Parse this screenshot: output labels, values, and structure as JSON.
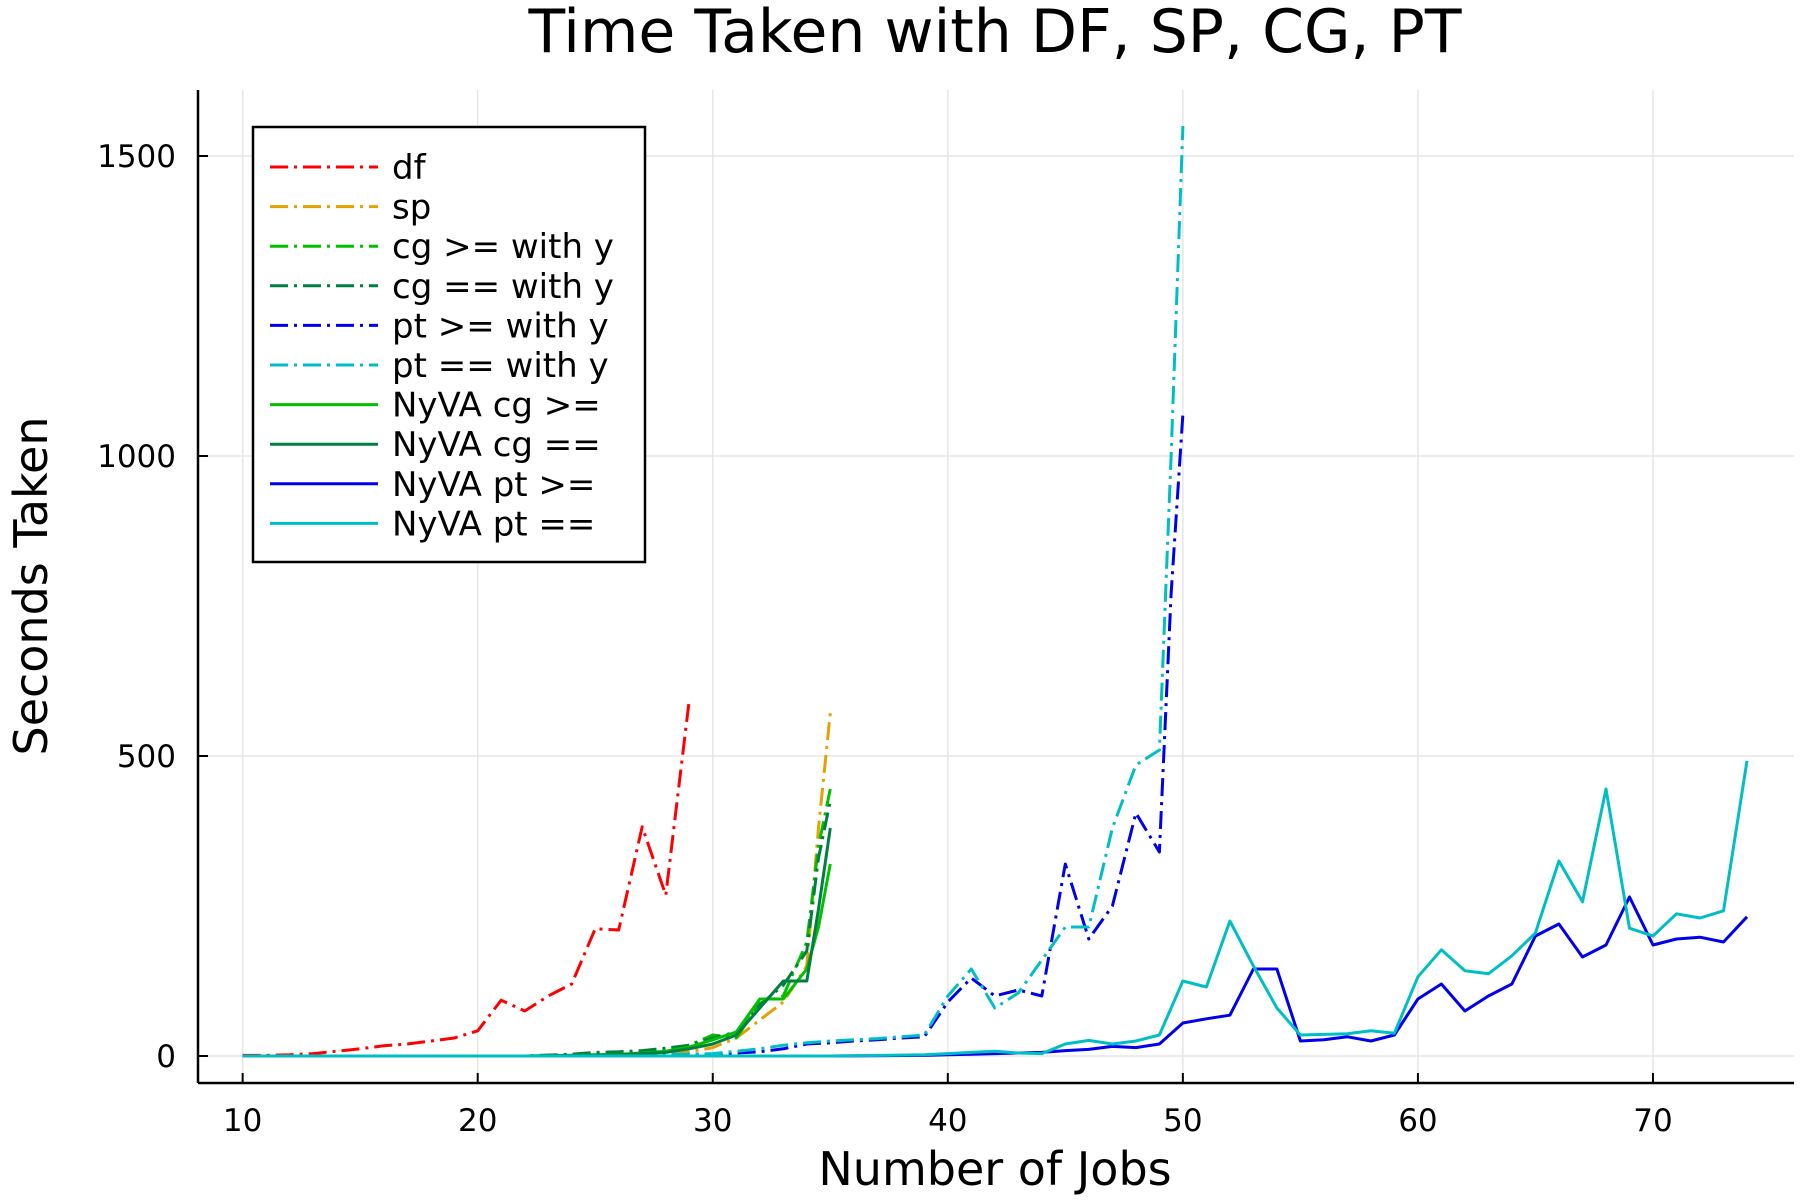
{
  "chart_data": {
    "type": "line",
    "title": "Time Taken with DF, SP, CG, PT",
    "xlabel": "Number of Jobs",
    "ylabel": "Seconds Taken",
    "xlim": [
      8.1,
      76
    ],
    "ylim": [
      -45,
      1610
    ],
    "xticks": [
      10,
      20,
      30,
      40,
      50,
      60,
      70
    ],
    "yticks": [
      0,
      500,
      1000,
      1500
    ],
    "grid": true,
    "legend_position": "top-left",
    "series": [
      {
        "name": "df",
        "color": "#ff0000",
        "style": "dashdot",
        "x": [
          10,
          11,
          12,
          13,
          14,
          15,
          16,
          17,
          18,
          19,
          20,
          21,
          22,
          23,
          24,
          25,
          26,
          27,
          28,
          29
        ],
        "y": [
          1,
          1,
          2,
          4,
          8,
          12,
          17,
          20,
          25,
          30,
          42,
          93,
          75,
          100,
          120,
          212,
          210,
          382,
          268,
          594
        ]
      },
      {
        "name": "sp",
        "color": "#e6a000",
        "style": "dashdot",
        "x": [
          10,
          12,
          14,
          16,
          18,
          20,
          22,
          24,
          26,
          28,
          29,
          30,
          31,
          32,
          33,
          34,
          34.5,
          35
        ],
        "y": [
          0,
          0,
          0,
          0,
          0,
          0,
          0,
          1,
          2,
          4,
          7,
          14,
          30,
          60,
          90,
          150,
          380,
          572
        ]
      },
      {
        "name": "cg >= with y",
        "color": "#00c000",
        "style": "dashdot",
        "x": [
          10,
          12,
          14,
          16,
          18,
          20,
          22,
          24,
          26,
          27,
          28,
          29,
          30,
          31,
          32,
          33,
          34,
          34.5,
          35
        ],
        "y": [
          0,
          0,
          0,
          0,
          0,
          0,
          0,
          2,
          5,
          6,
          10,
          18,
          35,
          30,
          88,
          100,
          190,
          350,
          445
        ]
      },
      {
        "name": "cg == with y",
        "color": "#008040",
        "style": "dashdot",
        "x": [
          10,
          12,
          14,
          16,
          18,
          20,
          22,
          24,
          25,
          26,
          27,
          28,
          29,
          30,
          31,
          32,
          33,
          34,
          34.5,
          35
        ],
        "y": [
          0,
          0,
          0,
          0,
          0,
          0,
          0,
          3,
          6,
          7,
          9,
          13,
          18,
          30,
          40,
          85,
          118,
          175,
          330,
          425
        ]
      },
      {
        "name": "pt >= with y",
        "color": "#0000ee",
        "style": "dashdot",
        "x": [
          10,
          15,
          20,
          25,
          30,
          31,
          32,
          33,
          34,
          35,
          36,
          37,
          38,
          39,
          40,
          41,
          42,
          43,
          44,
          45,
          46,
          47,
          48,
          49,
          49.5,
          50
        ],
        "y": [
          0,
          0,
          0,
          0,
          3,
          5,
          7,
          12,
          20,
          22,
          25,
          27,
          30,
          32,
          90,
          130,
          100,
          110,
          100,
          320,
          195,
          250,
          405,
          340,
          770,
          1070
        ]
      },
      {
        "name": "pt == with y",
        "color": "#00bfc4",
        "style": "dashdot",
        "x": [
          10,
          15,
          20,
          25,
          30,
          31,
          32,
          33,
          34,
          35,
          36,
          37,
          38,
          39,
          40,
          41,
          42,
          43,
          44,
          45,
          46,
          47,
          48,
          49,
          49.5,
          50
        ],
        "y": [
          0,
          0,
          0,
          0,
          4,
          8,
          12,
          18,
          22,
          25,
          27,
          29,
          32,
          35,
          100,
          145,
          80,
          105,
          160,
          215,
          215,
          380,
          485,
          510,
          1000,
          1550
        ]
      },
      {
        "name": "NyVA cg >=",
        "color": "#00c000",
        "style": "solid",
        "x": [
          10,
          12,
          14,
          16,
          18,
          20,
          22,
          24,
          26,
          27,
          28,
          29,
          30,
          31,
          32,
          33,
          34,
          34.5,
          35
        ],
        "y": [
          0,
          0,
          0,
          0,
          0,
          0,
          0,
          1,
          3,
          5,
          8,
          15,
          27,
          40,
          95,
          95,
          145,
          215,
          320
        ]
      },
      {
        "name": "NyVA cg ==",
        "color": "#008040",
        "style": "solid",
        "x": [
          10,
          12,
          14,
          16,
          18,
          20,
          22,
          24,
          26,
          27,
          28,
          29,
          30,
          31,
          32,
          33,
          34,
          34.5,
          35
        ],
        "y": [
          0,
          0,
          0,
          0,
          0,
          0,
          0,
          1,
          2,
          4,
          6,
          12,
          20,
          35,
          80,
          125,
          125,
          245,
          380
        ]
      },
      {
        "name": "NyVA pt >=",
        "color": "#0000ee",
        "style": "solid",
        "x": [
          10,
          15,
          20,
          25,
          30,
          35,
          39,
          40,
          41,
          42,
          43,
          44,
          45,
          46,
          47,
          48,
          49,
          50,
          51,
          52,
          53,
          54,
          55,
          56,
          57,
          58,
          59,
          60,
          61,
          62,
          63,
          64,
          65,
          66,
          67,
          68,
          69,
          70,
          71,
          72,
          73,
          74
        ],
        "y": [
          0,
          0,
          0,
          0,
          0,
          0,
          1,
          2,
          3,
          4,
          5,
          6,
          9,
          11,
          16,
          14,
          20,
          55,
          62,
          68,
          145,
          145,
          25,
          27,
          32,
          25,
          35,
          95,
          120,
          75,
          100,
          120,
          200,
          220,
          165,
          185,
          265,
          185,
          195,
          198,
          190,
          232
        ]
      },
      {
        "name": "NyVA pt ==",
        "color": "#00bfc4",
        "style": "solid",
        "x": [
          10,
          15,
          20,
          25,
          30,
          35,
          39,
          40,
          41,
          42,
          43,
          44,
          45,
          46,
          47,
          48,
          49,
          50,
          51,
          52,
          53,
          54,
          55,
          56,
          57,
          58,
          59,
          60,
          61,
          62,
          63,
          64,
          65,
          66,
          67,
          68,
          69,
          70,
          71,
          72,
          73,
          74
        ],
        "y": [
          0,
          0,
          0,
          0,
          0,
          0,
          2,
          4,
          6,
          8,
          5,
          4,
          20,
          26,
          20,
          25,
          35,
          125,
          115,
          225,
          150,
          80,
          35,
          36,
          37,
          42,
          38,
          132,
          177,
          142,
          137,
          167,
          205,
          325,
          257,
          445,
          213,
          200,
          237,
          230,
          242,
          492
        ]
      }
    ]
  }
}
